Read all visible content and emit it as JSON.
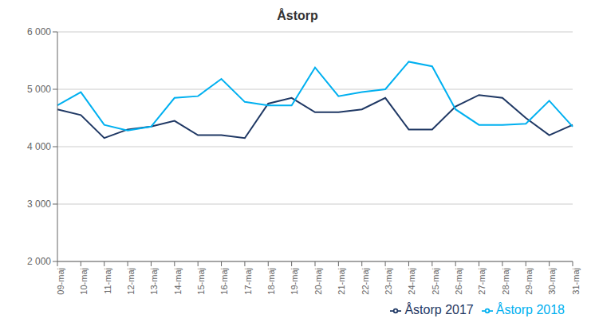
{
  "chart_data": {
    "type": "line",
    "title": "Åstorp",
    "categories": [
      "09-maj",
      "10-maj",
      "11-maj",
      "12-maj",
      "13-maj",
      "14-maj",
      "15-maj",
      "16-maj",
      "17-maj",
      "18-maj",
      "19-maj",
      "20-maj",
      "21-maj",
      "22-maj",
      "23-maj",
      "24-maj",
      "25-maj",
      "26-maj",
      "27-maj",
      "28-maj",
      "29-maj",
      "30-maj",
      "31-maj"
    ],
    "series": [
      {
        "name": "Åstorp 2017",
        "color": "#1F3864",
        "values": [
          4650,
          4550,
          4150,
          4300,
          4350,
          4450,
          4200,
          4200,
          4150,
          4750,
          4850,
          4600,
          4600,
          4650,
          4850,
          4300,
          4300,
          4700,
          4900,
          4850,
          4500,
          4200,
          4380
        ]
      },
      {
        "name": "Åstorp 2018",
        "color": "#00B0F0",
        "values": [
          4720,
          4950,
          4380,
          4280,
          4350,
          4850,
          4880,
          5180,
          4780,
          4720,
          4720,
          5380,
          4880,
          4950,
          5000,
          5480,
          5400,
          4650,
          4380,
          4380,
          4400,
          4800,
          4350
        ]
      }
    ],
    "ylim": [
      2000,
      6000
    ],
    "yticks": [
      {
        "value": 2000,
        "label": "2 000"
      },
      {
        "value": 3000,
        "label": "3 000"
      },
      {
        "value": 4000,
        "label": "4 000"
      },
      {
        "value": 5000,
        "label": "5 000"
      },
      {
        "value": 6000,
        "label": "6 000"
      }
    ],
    "grid": true,
    "legend": "lower right"
  }
}
